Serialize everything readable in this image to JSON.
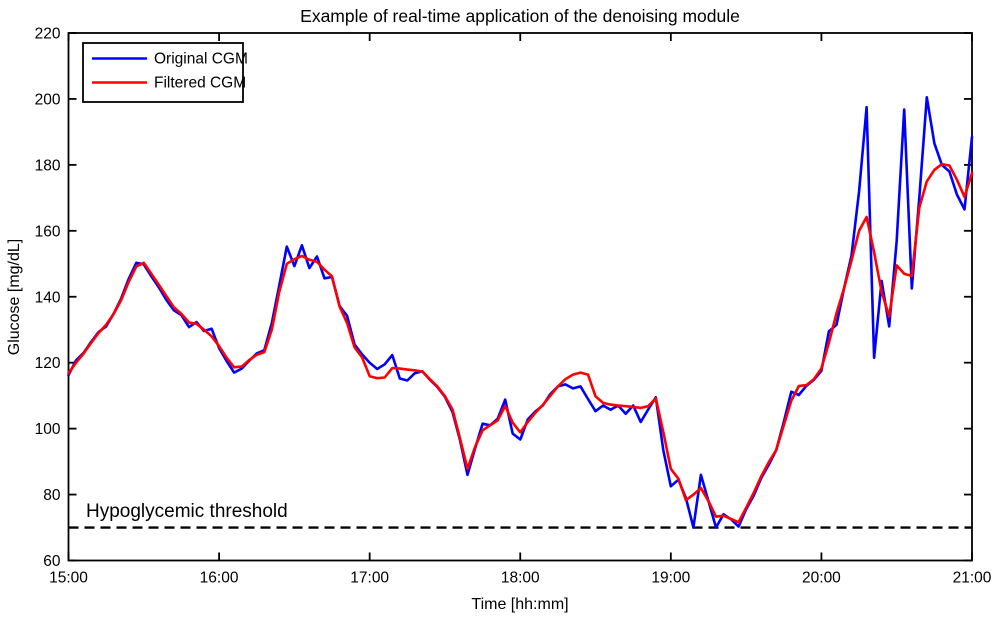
{
  "chart_data": {
    "type": "line",
    "title": "Example of real-time application of the denoising module",
    "xlabel": "Time [hh:mm]",
    "ylabel": "Glucose [mg/dL]",
    "grid": false,
    "legend_position": "top-left",
    "background_color": "#ffffff",
    "axis_color": "#000000",
    "x_axis": {
      "label": "Time [hh:mm]",
      "tick_labels": [
        "15:00",
        "16:00",
        "17:00",
        "18:00",
        "19:00",
        "20:00",
        "21:00"
      ],
      "tick_minutes": [
        0,
        60,
        120,
        180,
        240,
        300,
        360
      ],
      "range_minutes": [
        0,
        360
      ]
    },
    "y_axis": {
      "label": "Glucose [mg/dL]",
      "ticks": [
        60,
        80,
        100,
        120,
        140,
        160,
        180,
        200,
        220
      ],
      "range": [
        60,
        220
      ]
    },
    "threshold": {
      "label": "Hypoglycemic threshold",
      "value": 70,
      "style": "dashed",
      "color": "#000000"
    },
    "start_time": "15:00",
    "sampling_interval_min": 3,
    "series": [
      {
        "name": "Original CGM",
        "color": "#0000ff",
        "values": [
          116.2,
          120.7,
          123.0,
          126.3,
          129.3,
          131.0,
          134.9,
          139.5,
          145.4,
          150.3,
          149.8,
          146.2,
          142.8,
          139.0,
          135.9,
          134.4,
          130.8,
          132.3,
          129.6,
          130.3,
          124.4,
          120.5,
          117.0,
          118.2,
          120.6,
          122.8,
          123.8,
          132.0,
          143.5,
          155.2,
          149.3,
          155.6,
          148.7,
          152.2,
          145.6,
          146.0,
          137.2,
          134.2,
          125.5,
          122.5,
          120.0,
          118.1,
          119.5,
          122.3,
          115.2,
          114.6,
          116.8,
          117.4,
          114.8,
          112.6,
          109.6,
          105.0,
          96.5,
          86.0,
          94.0,
          101.5,
          101.0,
          103.0,
          108.8,
          98.5,
          96.7,
          102.8,
          105.2,
          107.0,
          110.5,
          112.8,
          113.4,
          112.2,
          112.8,
          109.0,
          105.3,
          107.0,
          105.7,
          107.0,
          104.5,
          107.0,
          102.0,
          105.8,
          109.5,
          93.5,
          82.5,
          84.5,
          79.0,
          70.0,
          86.0,
          78.0,
          70.0,
          74.0,
          72.5,
          70.3,
          75.5,
          79.7,
          85.0,
          89.0,
          93.5,
          102.0,
          111.2,
          110.2,
          113.0,
          114.8,
          117.5,
          129.5,
          131.5,
          142.5,
          152.5,
          172.0,
          197.5,
          121.5,
          144.8,
          131.0,
          157.0,
          196.8,
          142.5,
          170.0,
          200.5,
          186.5,
          180.0,
          178.0,
          171.0,
          166.5,
          188.5
        ]
      },
      {
        "name": "Filtered CGM",
        "color": "#ff0000",
        "values": [
          116.8,
          120.0,
          122.8,
          126.0,
          129.0,
          131.5,
          134.8,
          139.0,
          144.5,
          149.2,
          150.3,
          147.0,
          143.6,
          140.2,
          136.8,
          134.8,
          132.2,
          131.8,
          130.0,
          128.0,
          125.0,
          121.5,
          118.6,
          118.8,
          120.8,
          122.4,
          123.2,
          130.0,
          141.5,
          150.0,
          151.4,
          152.4,
          151.2,
          150.6,
          148.2,
          146.2,
          137.0,
          132.0,
          124.6,
          121.6,
          115.9,
          115.3,
          115.5,
          118.4,
          118.2,
          117.9,
          117.7,
          117.3,
          115.0,
          112.8,
          109.8,
          105.8,
          97.0,
          87.8,
          94.5,
          99.5,
          101.0,
          102.5,
          106.9,
          101.8,
          98.9,
          102.0,
          104.8,
          107.2,
          110.0,
          112.8,
          115.0,
          116.4,
          117.0,
          116.4,
          109.8,
          107.8,
          107.3,
          107.0,
          106.8,
          106.6,
          106.3,
          106.8,
          109.2,
          99.0,
          87.8,
          84.8,
          78.3,
          80.0,
          82.0,
          78.0,
          73.3,
          73.6,
          72.6,
          71.6,
          76.0,
          80.5,
          85.5,
          89.8,
          93.5,
          101.0,
          108.5,
          112.9,
          113.2,
          115.0,
          118.3,
          126.0,
          135.0,
          142.5,
          151.0,
          160.0,
          164.2,
          153.5,
          141.5,
          134.0,
          149.5,
          147.0,
          146.3,
          167.0,
          175.0,
          178.5,
          180.2,
          179.8,
          175.5,
          170.3,
          177.5
        ]
      }
    ]
  }
}
